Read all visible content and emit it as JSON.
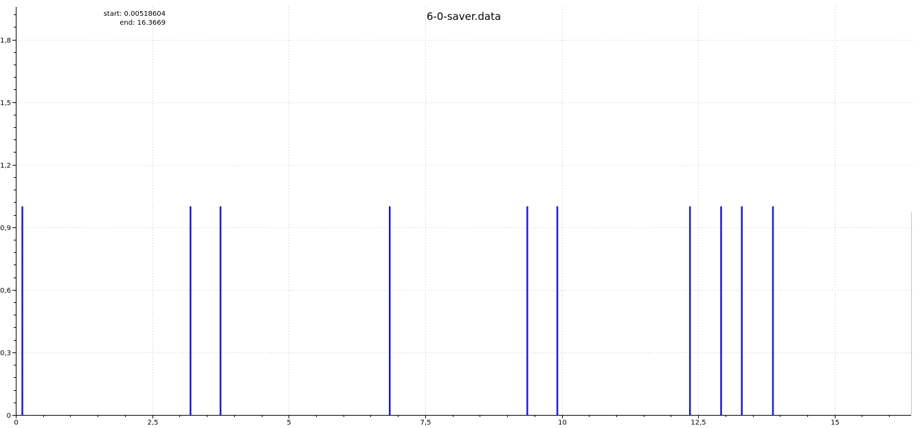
{
  "chart_data": {
    "type": "bar",
    "title": "6-0-saver.data",
    "info": {
      "start_label": "start: 0.00518604",
      "end_label": "end: 16.3669"
    },
    "xlabel": "",
    "ylabel": "",
    "xlim": [
      0,
      16.4
    ],
    "ylim": [
      0,
      1.95
    ],
    "x_ticks": [
      0,
      2.5,
      5,
      7.5,
      10,
      12.5,
      15
    ],
    "x_tick_labels": [
      "0",
      "2,5",
      "5",
      "7,5",
      "10",
      "12,5",
      "15"
    ],
    "y_ticks": [
      0,
      0.3,
      0.6,
      0.9,
      1.2,
      1.5,
      1.8
    ],
    "y_tick_labels": [
      "0",
      "0,3",
      "0,6",
      "0,9",
      "1,2",
      "1,5",
      "1,8"
    ],
    "grid": true,
    "series": [
      {
        "color": "#1a1ad6",
        "points": [
          {
            "x": 0.12,
            "y": 1
          },
          {
            "x": 3.2,
            "y": 1
          },
          {
            "x": 3.75,
            "y": 1
          },
          {
            "x": 6.85,
            "y": 1
          },
          {
            "x": 9.37,
            "y": 1
          },
          {
            "x": 9.92,
            "y": 1
          },
          {
            "x": 12.35,
            "y": 1
          },
          {
            "x": 12.92,
            "y": 1
          },
          {
            "x": 13.3,
            "y": 1
          },
          {
            "x": 13.87,
            "y": 1
          }
        ]
      }
    ]
  }
}
